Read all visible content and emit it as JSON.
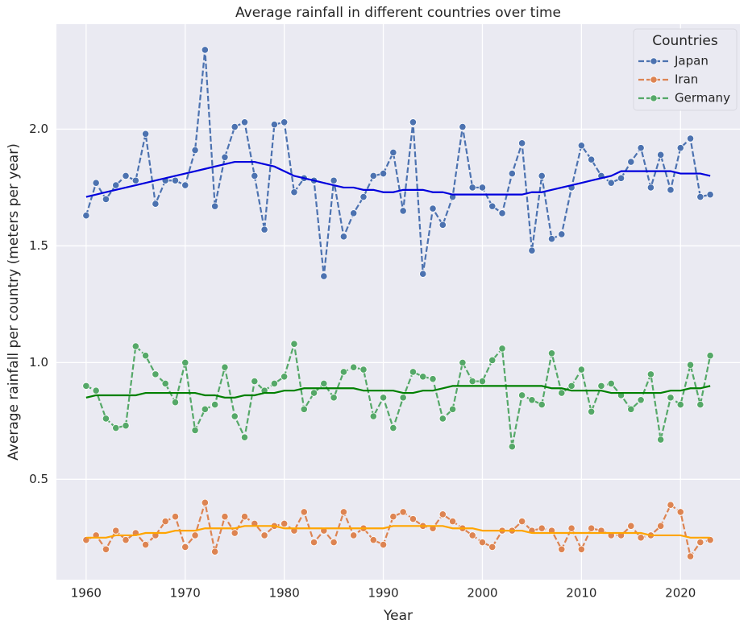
{
  "chart_data": {
    "type": "line",
    "title": "Average rainfall in different countries over time",
    "x_label": "Year",
    "y_label": "Average rainfall per country (meters per year)",
    "legend_title": "Countries",
    "legend": "upper right",
    "grid": true,
    "x": [
      1960,
      1961,
      1962,
      1963,
      1964,
      1965,
      1966,
      1967,
      1968,
      1969,
      1970,
      1971,
      1972,
      1973,
      1974,
      1975,
      1976,
      1977,
      1978,
      1979,
      1980,
      1981,
      1982,
      1983,
      1984,
      1985,
      1986,
      1987,
      1988,
      1989,
      1990,
      1991,
      1992,
      1993,
      1994,
      1995,
      1996,
      1997,
      1998,
      1999,
      2000,
      2001,
      2002,
      2003,
      2004,
      2005,
      2006,
      2007,
      2008,
      2009,
      2010,
      2011,
      2012,
      2013,
      2014,
      2015,
      2016,
      2017,
      2018,
      2019,
      2020,
      2021,
      2022,
      2023
    ],
    "xlim": [
      1957,
      2026
    ],
    "xticks": [
      1960,
      1970,
      1980,
      1990,
      2000,
      2010,
      2020
    ],
    "ylim": [
      0.07,
      2.45
    ],
    "yticks": [
      0.5,
      {
        "value": 1,
        "label": "1.0"
      },
      1.5,
      {
        "value": 2,
        "label": "2.0"
      }
    ],
    "series": [
      {
        "name": "Japan",
        "color": "#4c72b0",
        "dashed": true,
        "markers": true,
        "values": [
          1.63,
          1.77,
          1.7,
          1.76,
          1.8,
          1.78,
          1.98,
          1.68,
          1.78,
          1.78,
          1.76,
          1.91,
          2.34,
          1.67,
          1.88,
          2.01,
          2.03,
          1.8,
          1.57,
          2.02,
          2.03,
          1.73,
          1.79,
          1.78,
          1.37,
          1.78,
          1.54,
          1.64,
          1.71,
          1.8,
          1.81,
          1.9,
          1.65,
          2.03,
          1.38,
          1.66,
          1.59,
          1.71,
          2.01,
          1.75,
          1.75,
          1.67,
          1.64,
          1.81,
          1.94,
          1.48,
          1.8,
          1.53,
          1.55,
          1.75,
          1.93,
          1.87,
          1.8,
          1.77,
          1.79,
          1.86,
          1.92,
          1.75,
          1.89,
          1.74,
          1.92,
          1.96,
          1.71,
          1.72
        ]
      },
      {
        "name": "Iran",
        "color": "#dd8452",
        "dashed": true,
        "markers": true,
        "values": [
          0.24,
          0.26,
          0.2,
          0.28,
          0.24,
          0.27,
          0.22,
          0.26,
          0.32,
          0.34,
          0.21,
          0.26,
          0.4,
          0.19,
          0.34,
          0.27,
          0.34,
          0.31,
          0.26,
          0.3,
          0.31,
          0.28,
          0.36,
          0.23,
          0.28,
          0.23,
          0.36,
          0.26,
          0.29,
          0.24,
          0.22,
          0.34,
          0.36,
          0.33,
          0.3,
          0.29,
          0.35,
          0.32,
          0.29,
          0.26,
          0.23,
          0.21,
          0.28,
          0.28,
          0.32,
          0.28,
          0.29,
          0.28,
          0.2,
          0.29,
          0.2,
          0.29,
          0.28,
          0.26,
          0.26,
          0.3,
          0.25,
          0.26,
          0.3,
          0.39,
          0.36,
          0.17,
          0.23,
          0.24
        ]
      },
      {
        "name": "Germany",
        "color": "#55a868",
        "dashed": true,
        "markers": true,
        "values": [
          0.9,
          0.88,
          0.76,
          0.72,
          0.73,
          1.07,
          1.03,
          0.95,
          0.91,
          0.83,
          1.0,
          0.71,
          0.8,
          0.82,
          0.98,
          0.77,
          0.68,
          0.92,
          0.88,
          0.91,
          0.94,
          1.08,
          0.8,
          0.87,
          0.91,
          0.85,
          0.96,
          0.98,
          0.97,
          0.77,
          0.85,
          0.72,
          0.85,
          0.96,
          0.94,
          0.93,
          0.76,
          0.8,
          1.0,
          0.92,
          0.92,
          1.01,
          1.06,
          0.64,
          0.86,
          0.84,
          0.82,
          1.04,
          0.87,
          0.9,
          0.97,
          0.79,
          0.9,
          0.91,
          0.86,
          0.8,
          0.84,
          0.95,
          0.67,
          0.85,
          0.82,
          0.99,
          0.82,
          1.03
        ]
      },
      {
        "color": "#0000dd",
        "dashed": false,
        "markers": false,
        "values": [
          1.71,
          1.72,
          1.73,
          1.74,
          1.75,
          1.76,
          1.77,
          1.78,
          1.79,
          1.8,
          1.81,
          1.82,
          1.83,
          1.84,
          1.85,
          1.86,
          1.86,
          1.86,
          1.85,
          1.84,
          1.82,
          1.8,
          1.79,
          1.78,
          1.77,
          1.76,
          1.75,
          1.75,
          1.74,
          1.74,
          1.73,
          1.73,
          1.74,
          1.74,
          1.74,
          1.73,
          1.73,
          1.72,
          1.72,
          1.72,
          1.72,
          1.72,
          1.72,
          1.72,
          1.72,
          1.73,
          1.73,
          1.74,
          1.75,
          1.76,
          1.77,
          1.78,
          1.79,
          1.8,
          1.82,
          1.82,
          1.82,
          1.82,
          1.82,
          1.82,
          1.81,
          1.81,
          1.81,
          1.8
        ]
      },
      {
        "color": "#ffa500",
        "dashed": false,
        "markers": false,
        "values": [
          0.25,
          0.25,
          0.25,
          0.26,
          0.26,
          0.26,
          0.27,
          0.27,
          0.27,
          0.28,
          0.28,
          0.28,
          0.29,
          0.29,
          0.29,
          0.29,
          0.3,
          0.3,
          0.3,
          0.3,
          0.29,
          0.29,
          0.29,
          0.29,
          0.29,
          0.29,
          0.29,
          0.29,
          0.29,
          0.29,
          0.29,
          0.3,
          0.3,
          0.3,
          0.3,
          0.3,
          0.3,
          0.29,
          0.29,
          0.29,
          0.28,
          0.28,
          0.28,
          0.28,
          0.28,
          0.27,
          0.27,
          0.27,
          0.27,
          0.27,
          0.27,
          0.27,
          0.27,
          0.27,
          0.27,
          0.27,
          0.27,
          0.26,
          0.26,
          0.26,
          0.26,
          0.25,
          0.25,
          0.25
        ]
      },
      {
        "color": "#008000",
        "dashed": false,
        "markers": false,
        "values": [
          0.85,
          0.86,
          0.86,
          0.86,
          0.86,
          0.86,
          0.87,
          0.87,
          0.87,
          0.87,
          0.87,
          0.87,
          0.86,
          0.86,
          0.85,
          0.85,
          0.86,
          0.86,
          0.87,
          0.87,
          0.88,
          0.88,
          0.89,
          0.89,
          0.89,
          0.89,
          0.89,
          0.89,
          0.88,
          0.88,
          0.88,
          0.88,
          0.87,
          0.87,
          0.88,
          0.88,
          0.89,
          0.9,
          0.9,
          0.9,
          0.9,
          0.9,
          0.9,
          0.9,
          0.9,
          0.9,
          0.9,
          0.89,
          0.89,
          0.88,
          0.88,
          0.88,
          0.88,
          0.87,
          0.87,
          0.87,
          0.87,
          0.87,
          0.87,
          0.88,
          0.88,
          0.89,
          0.89,
          0.9
        ]
      }
    ]
  }
}
